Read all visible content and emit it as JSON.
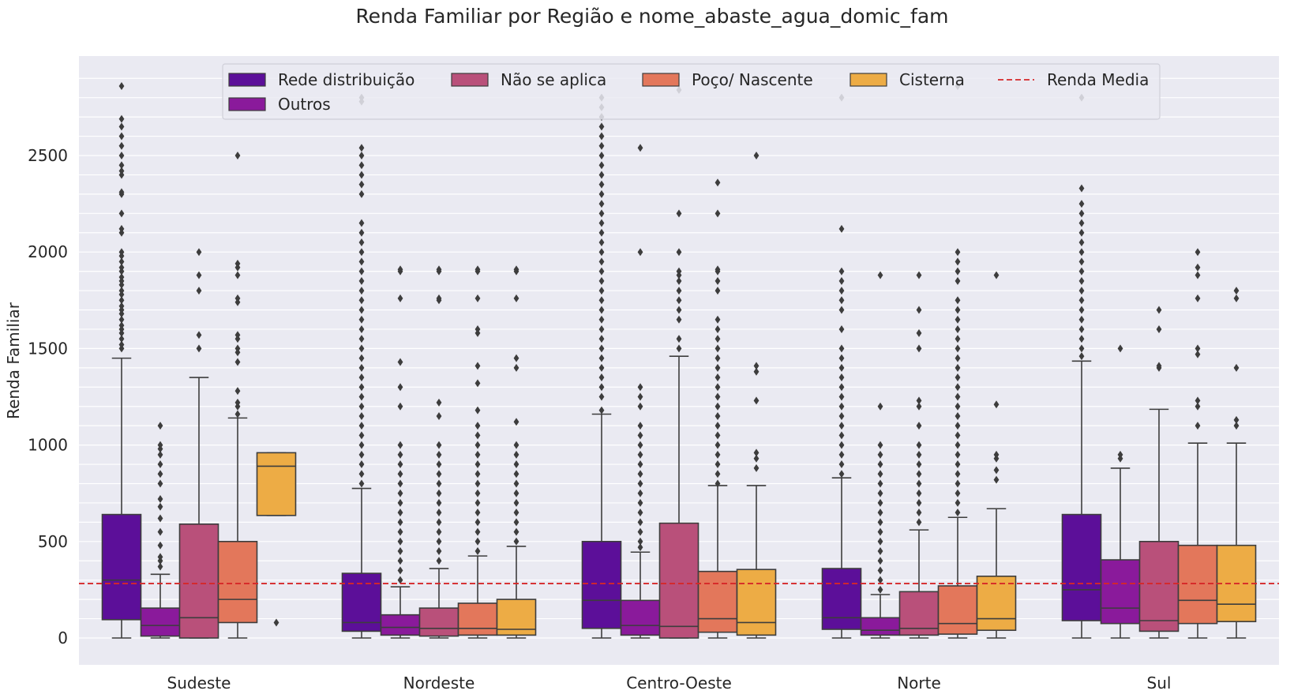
{
  "chart_data": {
    "type": "box",
    "title": "Renda Familiar por Região e nome_abaste_agua_domic_fam",
    "xlabel": "",
    "ylabel": "Renda Familiar",
    "ylim": [
      -140,
      3000
    ],
    "yticks": [
      0,
      500,
      1000,
      1500,
      2000,
      2500
    ],
    "grid": true,
    "legend_position": "top-center",
    "categories": [
      "Sudeste",
      "Nordeste",
      "Centro-Oeste",
      "Norte",
      "Sul"
    ],
    "reference_line": {
      "name": "Renda Media",
      "value": 282,
      "color": "#d62728"
    },
    "series": [
      {
        "name": "Rede distribuição",
        "color": "#5c0f99",
        "boxes": [
          {
            "wlo": 0,
            "q1": 95,
            "med": 300,
            "q3": 640,
            "whi": 1450,
            "fliers": [
              1500,
              1520,
              1550,
              1580,
              1600,
              1620,
              1650,
              1680,
              1700,
              1720,
              1750,
              1780,
              1800,
              1830,
              1850,
              1870,
              1900,
              1920,
              1950,
              1980,
              2000,
              2100,
              2120,
              2200,
              2300,
              2310,
              2400,
              2420,
              2450,
              2500,
              2550,
              2600,
              2650,
              2690,
              2860
            ]
          },
          {
            "wlo": 0,
            "q1": 35,
            "med": 80,
            "q3": 335,
            "whi": 775,
            "fliers": [
              800,
              850,
              900,
              950,
              1000,
              1050,
              1100,
              1150,
              1200,
              1250,
              1300,
              1350,
              1400,
              1450,
              1500,
              1550,
              1600,
              1650,
              1700,
              1750,
              1800,
              1850,
              1900,
              1950,
              2000,
              2050,
              2100,
              2150,
              2300,
              2350,
              2400,
              2450,
              2500,
              2540,
              2780,
              2800
            ]
          },
          {
            "wlo": 0,
            "q1": 50,
            "med": 195,
            "q3": 500,
            "whi": 1160,
            "fliers": [
              1180,
              1250,
              1300,
              1350,
              1400,
              1450,
              1500,
              1550,
              1600,
              1650,
              1700,
              1750,
              1800,
              1850,
              1900,
              1950,
              2000,
              2050,
              2100,
              2150,
              2200,
              2250,
              2300,
              2350,
              2400,
              2450,
              2500,
              2550,
              2600,
              2650,
              2700,
              2750,
              2800
            ]
          },
          {
            "wlo": 0,
            "q1": 45,
            "med": 105,
            "q3": 360,
            "whi": 830,
            "fliers": [
              850,
              900,
              950,
              1000,
              1050,
              1100,
              1150,
              1200,
              1250,
              1300,
              1350,
              1400,
              1450,
              1500,
              1600,
              1700,
              1750,
              1800,
              1850,
              1900,
              2120,
              2800
            ]
          },
          {
            "wlo": 0,
            "q1": 90,
            "med": 250,
            "q3": 640,
            "whi": 1435,
            "fliers": [
              1460,
              1500,
              1550,
              1600,
              1650,
              1700,
              1750,
              1800,
              1850,
              1900,
              1950,
              2000,
              2050,
              2100,
              2150,
              2200,
              2250,
              2330,
              2800
            ]
          }
        ]
      },
      {
        "name": "Outros",
        "color": "#8a1a9b",
        "boxes": [
          {
            "wlo": 0,
            "q1": 10,
            "med": 65,
            "q3": 155,
            "whi": 330,
            "fliers": [
              370,
              400,
              420,
              480,
              550,
              620,
              680,
              720,
              800,
              850,
              900,
              950,
              980,
              1000,
              1100
            ]
          },
          {
            "wlo": 0,
            "q1": 15,
            "med": 55,
            "q3": 120,
            "whi": 265,
            "fliers": [
              300,
              350,
              400,
              450,
              500,
              550,
              600,
              650,
              700,
              750,
              800,
              850,
              900,
              950,
              1000,
              1200,
              1300,
              1430,
              1760,
              1900,
              1910
            ]
          },
          {
            "wlo": 0,
            "q1": 15,
            "med": 65,
            "q3": 195,
            "whi": 445,
            "fliers": [
              470,
              500,
              550,
              600,
              650,
              700,
              750,
              800,
              850,
              900,
              950,
              1000,
              1050,
              1100,
              1200,
              1250,
              1300,
              2000,
              2540
            ]
          },
          {
            "wlo": 0,
            "q1": 15,
            "med": 40,
            "q3": 105,
            "whi": 225,
            "fliers": [
              250,
              300,
              350,
              400,
              450,
              500,
              550,
              600,
              650,
              700,
              750,
              800,
              850,
              900,
              950,
              1000,
              1200,
              1880
            ]
          },
          {
            "wlo": 0,
            "q1": 75,
            "med": 155,
            "q3": 405,
            "whi": 880,
            "fliers": [
              930,
              950,
              1500
            ]
          }
        ]
      },
      {
        "name": "Não se aplica",
        "color": "#b9507a",
        "boxes": [
          {
            "wlo": 0,
            "q1": 0,
            "med": 105,
            "q3": 590,
            "whi": 1350,
            "fliers": [
              1500,
              1570,
              1800,
              1880,
              2000
            ]
          },
          {
            "wlo": 0,
            "q1": 10,
            "med": 50,
            "q3": 155,
            "whi": 360,
            "fliers": [
              400,
              450,
              500,
              550,
              600,
              650,
              700,
              750,
              800,
              850,
              900,
              950,
              1000,
              1150,
              1220,
              1750,
              1760,
              1900,
              1910
            ]
          },
          {
            "wlo": 0,
            "q1": 0,
            "med": 60,
            "q3": 595,
            "whi": 1460,
            "fliers": [
              1500,
              1550,
              1650,
              1700,
              1750,
              1800,
              1850,
              1880,
              1900,
              2000,
              2200,
              2840
            ]
          },
          {
            "wlo": 0,
            "q1": 15,
            "med": 50,
            "q3": 240,
            "whi": 560,
            "fliers": [
              600,
              650,
              700,
              750,
              800,
              850,
              900,
              950,
              1000,
              1100,
              1200,
              1230,
              1500,
              1580,
              1700,
              1880
            ]
          },
          {
            "wlo": 0,
            "q1": 35,
            "med": 90,
            "q3": 500,
            "whi": 1185,
            "fliers": [
              1400,
              1410,
              1600,
              1700
            ]
          }
        ]
      },
      {
        "name": "Poço/ Nascente",
        "color": "#e3775b",
        "boxes": [
          {
            "wlo": 0,
            "q1": 80,
            "med": 200,
            "q3": 500,
            "whi": 1140,
            "fliers": [
              1160,
              1200,
              1220,
              1280,
              1430,
              1480,
              1500,
              1550,
              1570,
              1740,
              1760,
              1880,
              1920,
              1940,
              2500
            ]
          },
          {
            "wlo": 0,
            "q1": 15,
            "med": 50,
            "q3": 180,
            "whi": 425,
            "fliers": [
              450,
              500,
              550,
              600,
              650,
              700,
              750,
              800,
              850,
              900,
              950,
              1000,
              1050,
              1100,
              1180,
              1320,
              1410,
              1580,
              1600,
              1760,
              1900,
              1910
            ]
          },
          {
            "wlo": 0,
            "q1": 30,
            "med": 100,
            "q3": 345,
            "whi": 790,
            "fliers": [
              800,
              850,
              900,
              950,
              1000,
              1050,
              1100,
              1150,
              1200,
              1250,
              1300,
              1350,
              1400,
              1450,
              1500,
              1550,
              1600,
              1650,
              1800,
              1850,
              1900,
              1910,
              2200,
              2360
            ]
          },
          {
            "wlo": 0,
            "q1": 20,
            "med": 75,
            "q3": 270,
            "whi": 625,
            "fliers": [
              650,
              700,
              750,
              800,
              850,
              900,
              950,
              1000,
              1050,
              1100,
              1150,
              1200,
              1250,
              1300,
              1350,
              1400,
              1450,
              1500,
              1550,
              1600,
              1650,
              1700,
              1750,
              1850,
              1900,
              1950,
              2000,
              2860
            ]
          },
          {
            "wlo": 0,
            "q1": 75,
            "med": 195,
            "q3": 480,
            "whi": 1010,
            "fliers": [
              1100,
              1200,
              1230,
              1470,
              1500,
              1760,
              1880,
              1920,
              2000
            ]
          }
        ]
      },
      {
        "name": "Cisterna",
        "color": "#edac45",
        "boxes": [
          {
            "wlo": 635,
            "q1": 635,
            "med": 890,
            "q3": 960,
            "whi": 960,
            "fliers": [
              80
            ]
          },
          {
            "wlo": 0,
            "q1": 15,
            "med": 45,
            "q3": 200,
            "whi": 475,
            "fliers": [
              500,
              550,
              600,
              650,
              700,
              750,
              800,
              850,
              900,
              950,
              1000,
              1120,
              1400,
              1450,
              1760,
              1900,
              1910
            ]
          },
          {
            "wlo": 0,
            "q1": 15,
            "med": 80,
            "q3": 355,
            "whi": 790,
            "fliers": [
              880,
              930,
              960,
              1230,
              1380,
              1410,
              2500
            ]
          },
          {
            "wlo": 0,
            "q1": 40,
            "med": 100,
            "q3": 320,
            "whi": 670,
            "fliers": [
              820,
              870,
              930,
              950,
              1210,
              1880
            ]
          },
          {
            "wlo": 0,
            "q1": 85,
            "med": 175,
            "q3": 480,
            "whi": 1010,
            "fliers": [
              1100,
              1130,
              1400,
              1760,
              1800
            ]
          }
        ]
      }
    ]
  }
}
